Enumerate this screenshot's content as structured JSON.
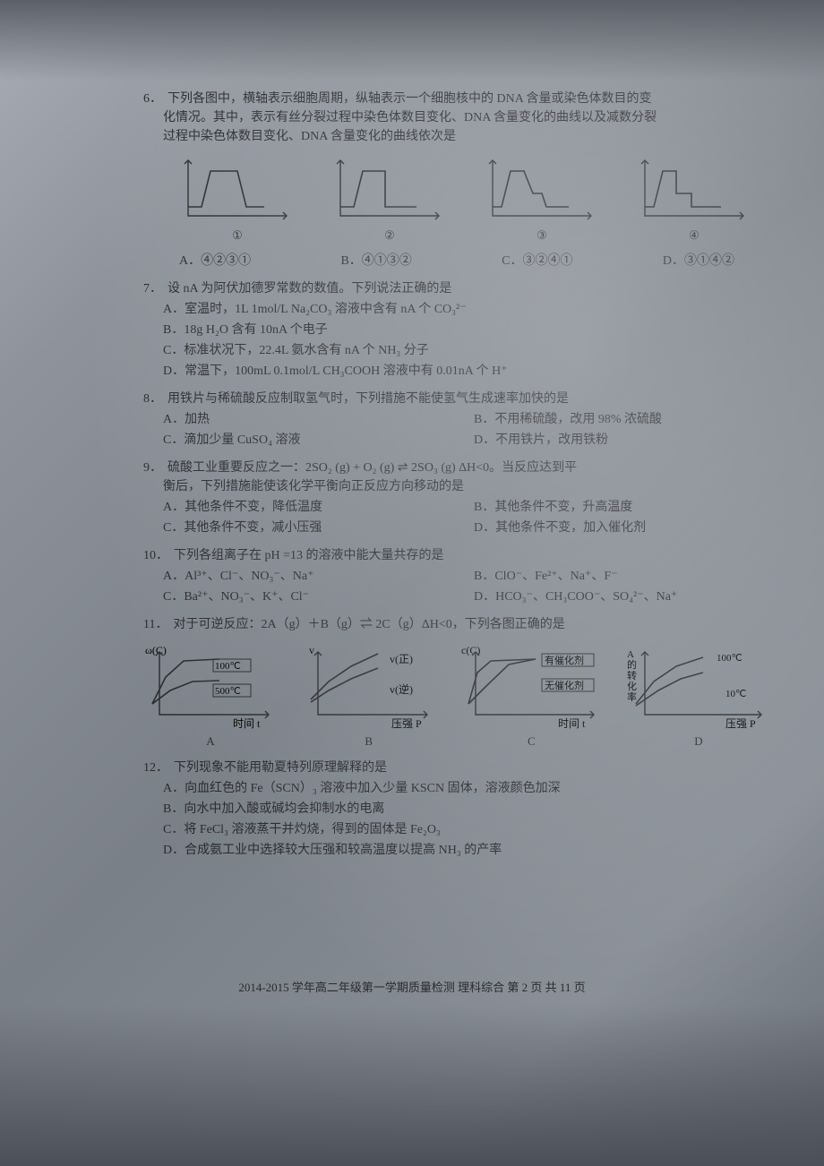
{
  "q6": {
    "num": "6．",
    "text_l1": "下列各图中，横轴表示细胞周期，纵轴表示一个细胞核中的 DNA 含量或染色体数目的变",
    "text_l2": "化情况。其中，表示有丝分裂过程中染色体数目变化、DNA 含量变化的曲线以及减数分裂",
    "text_l3": "过程中染色体数目变化、DNA 含量变化的曲线依次是",
    "fig_labels": [
      "①",
      "②",
      "③",
      "④"
    ],
    "opts": {
      "A": "A．④②③①",
      "B": "B．④①③②",
      "C": "C．③②④①",
      "D": "D．③①④②"
    },
    "charts": [
      {
        "type": "line",
        "stroke": "#2a2a2e",
        "stroke_w": 1.6,
        "points": [
          [
            10,
            60
          ],
          [
            25,
            60
          ],
          [
            35,
            20
          ],
          [
            65,
            20
          ],
          [
            75,
            60
          ],
          [
            95,
            60
          ]
        ]
      },
      {
        "type": "line",
        "stroke": "#2a2a2e",
        "stroke_w": 1.6,
        "points": [
          [
            10,
            60
          ],
          [
            25,
            60
          ],
          [
            35,
            20
          ],
          [
            60,
            20
          ],
          [
            60,
            60
          ],
          [
            95,
            60
          ]
        ]
      },
      {
        "type": "line",
        "stroke": "#2a2a2e",
        "stroke_w": 1.6,
        "points": [
          [
            10,
            60
          ],
          [
            20,
            60
          ],
          [
            30,
            20
          ],
          [
            45,
            20
          ],
          [
            55,
            45
          ],
          [
            65,
            45
          ],
          [
            70,
            60
          ],
          [
            95,
            60
          ]
        ]
      },
      {
        "type": "line",
        "stroke": "#2a2a2e",
        "stroke_w": 1.6,
        "points": [
          [
            10,
            60
          ],
          [
            20,
            60
          ],
          [
            30,
            20
          ],
          [
            45,
            20
          ],
          [
            45,
            45
          ],
          [
            62,
            45
          ],
          [
            62,
            60
          ],
          [
            95,
            60
          ]
        ]
      }
    ]
  },
  "q7": {
    "num": "7．",
    "text": "设 nA 为阿伏加德罗常数的数值。下列说法正确的是",
    "opts": {
      "A": "A．室温时，1L 1mol/L Na₂CO₃ 溶液中含有 nA 个 CO₃²⁻",
      "B": "B．18g H₂O 含有 10nA 个电子",
      "C": "C．标准状况下，22.4L 氨水含有 nA 个 NH₃ 分子",
      "D": "D．常温下，100mL 0.1mol/L CH₃COOH 溶液中有 0.01nA 个 H⁺"
    }
  },
  "q8": {
    "num": "8．",
    "text": "用铁片与稀硫酸反应制取氢气时，下列措施不能使氢气生成速率加快的是",
    "opts": {
      "A": "A．加热",
      "B": "B．不用稀硫酸，改用 98% 浓硫酸",
      "C": "C．滴加少量 CuSO₄ 溶液",
      "D": "D．不用铁片，改用铁粉"
    }
  },
  "q9": {
    "num": "9．",
    "text_l1": "硫酸工业重要反应之一：2SO₂ (g) + O₂ (g) ⇌ 2SO₃ (g)  ΔH<0。当反应达到平",
    "text_l2": "衡后，下列措施能使该化学平衡向正反应方向移动的是",
    "opts": {
      "A": "A．其他条件不变，降低温度",
      "B": "B．其他条件不变，升高温度",
      "C": "C．其他条件不变，减小压强",
      "D": "D．其他条件不变，加入催化剂"
    }
  },
  "q10": {
    "num": "10．",
    "text": "下列各组离子在 pH =13 的溶液中能大量共存的是",
    "opts": {
      "A": "A．Al³⁺、Cl⁻、NO₃⁻、Na⁺",
      "B": "B．ClO⁻、Fe²⁺、Na⁺、F⁻",
      "C": "C．Ba²⁺、NO₃⁻、K⁺、Cl⁻",
      "D": "D．HCO₃⁻、CH₃COO⁻、SO₄²⁻、Na⁺"
    }
  },
  "q11": {
    "num": "11．",
    "text": "对于可逆反应：2A（g）＋B（g）⇌ 2C（g）ΔH<0，下列各图正确的是",
    "labels": [
      "A",
      "B",
      "C",
      "D"
    ],
    "chartA": {
      "ylabel": "ω(C)",
      "xlabel": "时间 t",
      "t1": "100℃",
      "t2": "500℃",
      "curves": [
        [
          [
            10,
            70
          ],
          [
            25,
            40
          ],
          [
            45,
            22
          ],
          [
            85,
            20
          ]
        ],
        [
          [
            10,
            70
          ],
          [
            30,
            55
          ],
          [
            55,
            45
          ],
          [
            85,
            44
          ]
        ]
      ]
    },
    "chartB": {
      "ylabel": "v",
      "xlabel": "压强 P",
      "t1": "v(正)",
      "t2": "v(逆)",
      "curves": [
        [
          [
            10,
            65
          ],
          [
            30,
            45
          ],
          [
            55,
            28
          ],
          [
            85,
            14
          ]
        ],
        [
          [
            10,
            68
          ],
          [
            30,
            55
          ],
          [
            55,
            42
          ],
          [
            85,
            30
          ]
        ]
      ]
    },
    "chartC": {
      "ylabel": "c(C)",
      "xlabel": "时间 t",
      "t1": "有催化剂",
      "t2": "无催化剂",
      "curves": [
        [
          [
            10,
            70
          ],
          [
            20,
            35
          ],
          [
            35,
            22
          ],
          [
            85,
            20
          ]
        ],
        [
          [
            10,
            70
          ],
          [
            30,
            50
          ],
          [
            55,
            26
          ],
          [
            85,
            20
          ]
        ]
      ]
    },
    "chartD": {
      "ylabel": "A的转化率",
      "xlabel": "压强 P",
      "t1": "100℃",
      "t2": "10℃",
      "curves": [
        [
          [
            10,
            70
          ],
          [
            30,
            45
          ],
          [
            55,
            28
          ],
          [
            85,
            18
          ]
        ],
        [
          [
            10,
            72
          ],
          [
            35,
            55
          ],
          [
            60,
            42
          ],
          [
            85,
            35
          ]
        ]
      ]
    }
  },
  "q12": {
    "num": "12．",
    "text": "下列现象不能用勒夏特列原理解释的是",
    "opts": {
      "A": "A．向血红色的 Fe（SCN）₃ 溶液中加入少量 KSCN 固体，溶液颜色加深",
      "B": "B．向水中加入酸或碱均会抑制水的电离",
      "C": "C．将 FeCl₃ 溶液蒸干并灼烧，得到的固体是 Fe₂O₃",
      "D": "D．合成氨工业中选择较大压强和较高温度以提高 NH₃ 的产率"
    }
  },
  "footer": "2014-2015 学年高二年级第一学期质量检测  理科综合   第 2 页  共 11 页",
  "colors": {
    "ink": "#2a2a2e",
    "axis": "#2a2a2e"
  }
}
